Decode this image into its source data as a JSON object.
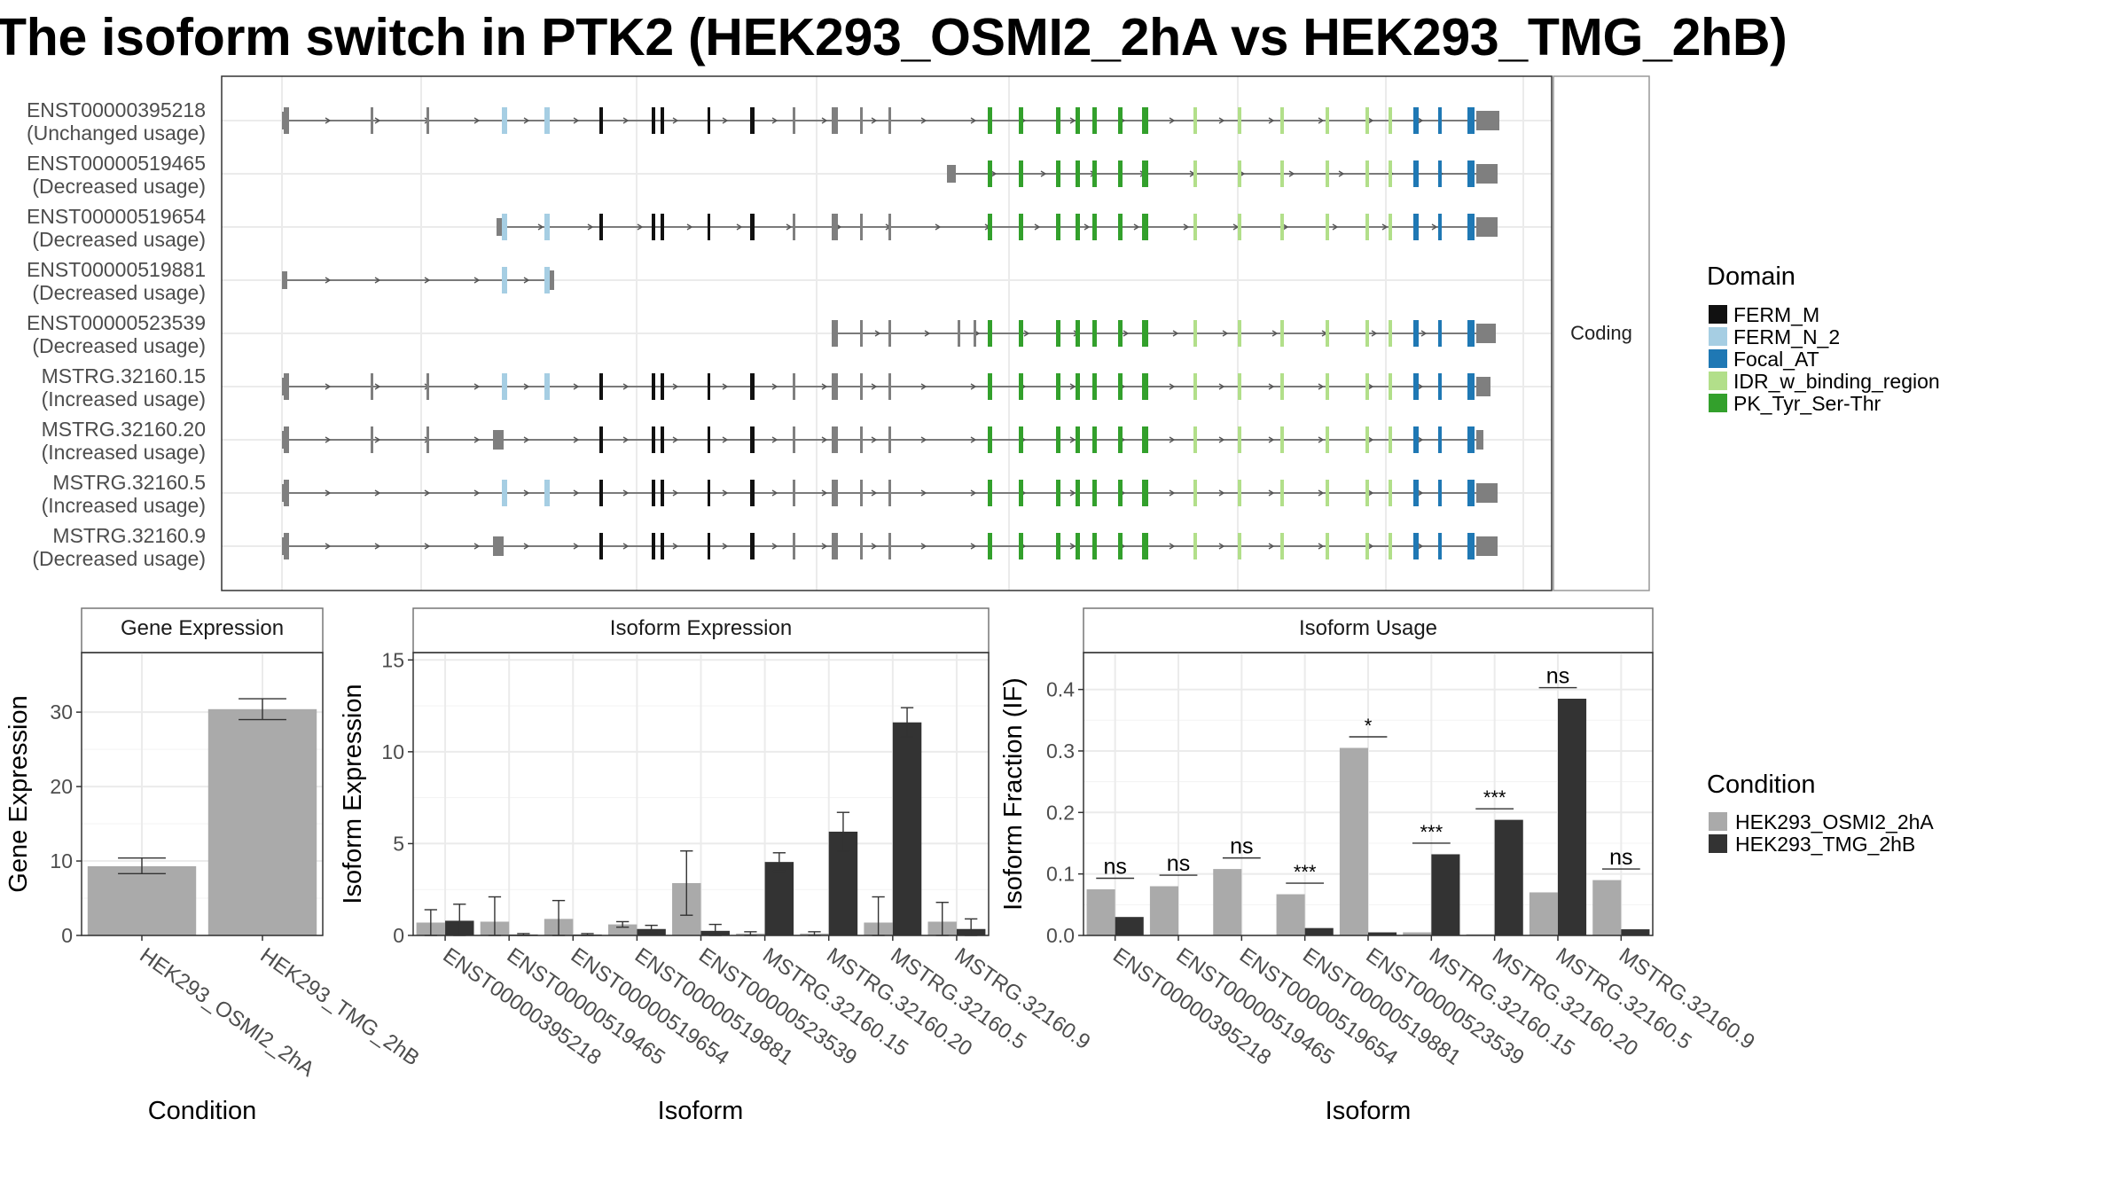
{
  "title": "The isoform switch in PTK2 (HEK293_OSMI2_2hA vs HEK293_TMG_2hB)",
  "colors": {
    "FERM_M": "#111111",
    "FERM_N_2": "#a6cee3",
    "Focal_AT": "#1f78b4",
    "IDR_w_binding_region": "#b2df8a",
    "PK_Tyr_Ser-Thr": "#33a02c",
    "noncoding": "#7f7f7f",
    "cond1": "#aaaaaa",
    "cond2": "#333333"
  },
  "structure": {
    "strip_label": "Coding",
    "transcripts": [
      {
        "id": "ENST00000395218",
        "usage": "(Unchanged usage)"
      },
      {
        "id": "ENST00000519465",
        "usage": "(Decreased usage)"
      },
      {
        "id": "ENST00000519654",
        "usage": "(Decreased usage)"
      },
      {
        "id": "ENST00000519881",
        "usage": "(Decreased usage)"
      },
      {
        "id": "ENST00000523539",
        "usage": "(Decreased usage)"
      },
      {
        "id": "MSTRG.32160.15",
        "usage": "(Increased usage)"
      },
      {
        "id": "MSTRG.32160.20",
        "usage": "(Increased usage)"
      },
      {
        "id": "MSTRG.32160.5",
        "usage": "(Increased usage)"
      },
      {
        "id": "MSTRG.32160.9",
        "usage": "(Decreased usage)"
      }
    ]
  },
  "legend_domain": {
    "title": "Domain",
    "items": [
      {
        "label": "FERM_M",
        "color_key": "FERM_M"
      },
      {
        "label": "FERM_N_2",
        "color_key": "FERM_N_2"
      },
      {
        "label": "Focal_AT",
        "color_key": "Focal_AT"
      },
      {
        "label": "IDR_w_binding_region",
        "color_key": "IDR_w_binding_region"
      },
      {
        "label": "PK_Tyr_Ser-Thr",
        "color_key": "PK_Tyr_Ser-Thr"
      }
    ]
  },
  "legend_condition": {
    "title": "Condition",
    "items": [
      {
        "label": "HEK293_OSMI2_2hA",
        "color_key": "cond1"
      },
      {
        "label": "HEK293_TMG_2hB",
        "color_key": "cond2"
      }
    ]
  },
  "chart_data": [
    {
      "type": "bar",
      "panel": "Gene Expression",
      "xlabel": "Condition",
      "ylabel": "Gene Expression",
      "ylim": [
        0,
        38
      ],
      "yticks": [
        0,
        10,
        20,
        30
      ],
      "categories": [
        "HEK293_OSMI2_2hA",
        "HEK293_TMG_2hB"
      ],
      "values": [
        9.3,
        30.4
      ],
      "errors": [
        [
          8.3,
          10.4
        ],
        [
          29.0,
          31.8
        ]
      ]
    },
    {
      "type": "bar",
      "panel": "Isoform Expression",
      "xlabel": "Isoform",
      "ylabel": "Isoform Expression",
      "ylim": [
        0,
        15.4
      ],
      "yticks": [
        0,
        5,
        10,
        15
      ],
      "categories": [
        "ENST00000395218",
        "ENST00000519465",
        "ENST00000519654",
        "ENST00000519881",
        "ENST00000523539",
        "MSTRG.32160.15",
        "MSTRG.32160.20",
        "MSTRG.32160.5",
        "MSTRG.32160.9"
      ],
      "series": [
        {
          "name": "HEK293_OSMI2_2hA",
          "values": [
            0.7,
            0.75,
            0.9,
            0.6,
            2.85,
            0.1,
            0.1,
            0.7,
            0.75
          ],
          "errors": [
            [
              0.0,
              1.4
            ],
            [
              0.0,
              2.1
            ],
            [
              0.0,
              1.9
            ],
            [
              0.45,
              0.75
            ],
            [
              1.1,
              4.6
            ],
            [
              0.0,
              0.2
            ],
            [
              0.0,
              0.2
            ],
            [
              0.0,
              2.1
            ],
            [
              0.0,
              1.8
            ]
          ]
        },
        {
          "name": "HEK293_TMG_2hB",
          "values": [
            0.8,
            0.05,
            0.05,
            0.35,
            0.25,
            4.0,
            5.65,
            11.6,
            0.35
          ],
          "errors": [
            [
              0.0,
              1.7
            ],
            [
              0.0,
              0.1
            ],
            [
              0.0,
              0.1
            ],
            [
              0.15,
              0.55
            ],
            [
              0.0,
              0.6
            ],
            [
              3.5,
              4.5
            ],
            [
              4.6,
              6.7
            ],
            [
              10.8,
              12.4
            ],
            [
              0.0,
              0.9
            ]
          ]
        }
      ]
    },
    {
      "type": "bar",
      "panel": "Isoform Usage",
      "xlabel": "Isoform",
      "ylabel": "Isoform Fraction (IF)",
      "ylim": [
        0,
        0.46
      ],
      "yticks": [
        0.0,
        0.1,
        0.2,
        0.3,
        0.4
      ],
      "ytick_labels": [
        "0.0",
        "0.1",
        "0.2",
        "0.3",
        "0.4"
      ],
      "categories": [
        "ENST00000395218",
        "ENST00000519465",
        "ENST00000519654",
        "ENST00000519881",
        "ENST00000523539",
        "MSTRG.32160.15",
        "MSTRG.32160.20",
        "MSTRG.32160.5",
        "MSTRG.32160.9"
      ],
      "series": [
        {
          "name": "HEK293_OSMI2_2hA",
          "values": [
            0.075,
            0.08,
            0.108,
            0.067,
            0.305,
            0.005,
            0.002,
            0.07,
            0.09
          ]
        },
        {
          "name": "HEK293_TMG_2hB",
          "values": [
            0.03,
            0.0,
            0.0,
            0.012,
            0.005,
            0.132,
            0.188,
            0.385,
            0.01
          ]
        }
      ],
      "significance": [
        "ns",
        "ns",
        "ns",
        "***",
        "*",
        "***",
        "***",
        "ns",
        "ns"
      ],
      "sig_level": [
        0.093,
        0.098,
        0.126,
        0.085,
        0.323,
        0.15,
        0.206,
        0.403,
        0.108
      ]
    }
  ]
}
